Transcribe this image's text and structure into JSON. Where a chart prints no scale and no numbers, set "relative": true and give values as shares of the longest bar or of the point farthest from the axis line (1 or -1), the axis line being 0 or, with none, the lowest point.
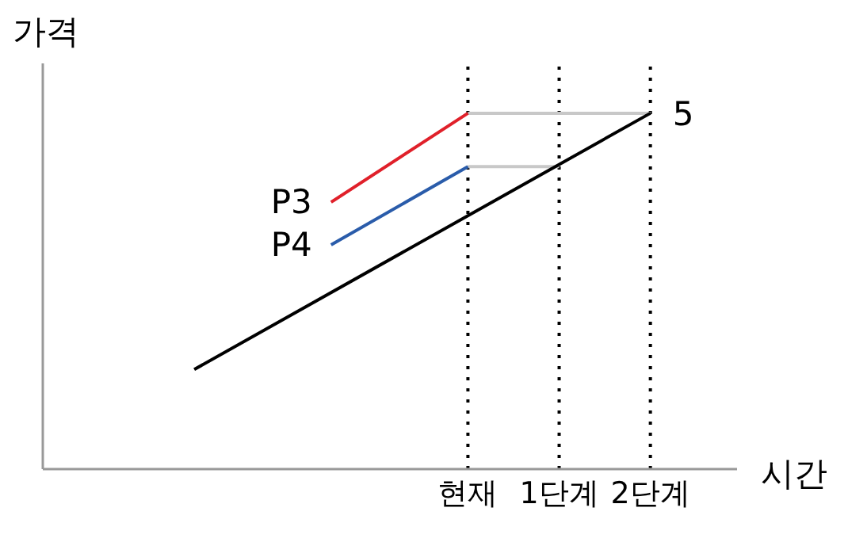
{
  "chart_data": {
    "type": "line",
    "relative": true,
    "xlabel": "시간",
    "ylabel": "가격",
    "tick_labels": "x",
    "marker": "none",
    "line_style": "solid",
    "categories": [
      null,
      null,
      null,
      null,
      null,
      null,
      "현재",
      null,
      "1단계",
      null,
      "2단계"
    ],
    "ref_lines": [
      {
        "axis": "x",
        "value": "현재",
        "color": "#000000",
        "line_style": "dotted"
      },
      {
        "axis": "x",
        "value": "1단계",
        "color": "#000000",
        "line_style": "dotted"
      },
      {
        "axis": "x",
        "value": "2단계",
        "color": "#000000",
        "line_style": "dotted"
      }
    ],
    "annotations": [
      {
        "text": "5",
        "x": "2단계",
        "y": 1
      }
    ],
    "series": [
      {
        "color": "#c8c8c8",
        "values": [
          null,
          null,
          null,
          null,
          null,
          null,
          1,
          null,
          null,
          null,
          1
        ]
      },
      {
        "color": "#c8c8c8",
        "values": [
          null,
          null,
          null,
          null,
          null,
          null,
          0.85,
          null,
          0.85,
          null,
          null
        ]
      },
      {
        "color": "#000000",
        "values": [
          0.28,
          null,
          null,
          null,
          null,
          null,
          null,
          null,
          null,
          null,
          1
        ]
      },
      {
        "name": "P3",
        "color": "#e0202a",
        "values": [
          null,
          null,
          null,
          0.75,
          null,
          null,
          1,
          null,
          null,
          null,
          null
        ]
      },
      {
        "name": "P4",
        "color": "#2a5caa",
        "values": [
          null,
          null,
          null,
          0.63,
          null,
          null,
          0.85,
          null,
          null,
          null,
          null
        ]
      }
    ]
  }
}
